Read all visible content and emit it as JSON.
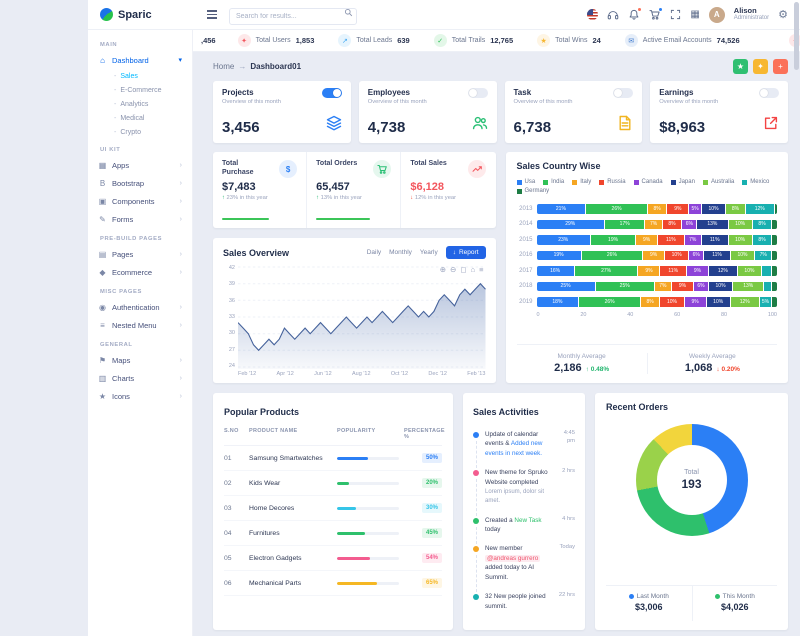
{
  "app": {
    "logo": "Sparic"
  },
  "header": {
    "search_placeholder": "Search for results...",
    "user_name": "Alison",
    "user_role": "Administrator",
    "user_initial": "A",
    "icons": [
      "us-flag-icon",
      "support-headset-icon",
      "notifications-bell-icon",
      "cart-icon",
      "fullscreen-icon",
      "apps-grid-icon",
      "settings-gear-icon"
    ]
  },
  "ticker": {
    "partial": ",456",
    "items": [
      {
        "icon": "users-icon",
        "label": "Total Users",
        "value": "1,853",
        "color": "#f3565d"
      },
      {
        "icon": "leads-icon",
        "label": "Total Leads",
        "value": "639",
        "color": "#45aaf2"
      },
      {
        "icon": "trails-icon",
        "label": "Total Trails",
        "value": "12,765",
        "color": "#2bc155"
      },
      {
        "icon": "wins-icon",
        "label": "Total Wins",
        "value": "24",
        "color": "#f7b731"
      },
      {
        "icon": "email-icon",
        "label": "Active Email Accounts",
        "value": "74,526",
        "color": "#467fcf"
      }
    ]
  },
  "sidebar": {
    "sections": [
      {
        "label": "MAIN",
        "items": [
          {
            "label": "Dashboard",
            "icon": "home-icon",
            "active": true,
            "expanded": true,
            "children": [
              {
                "label": "Sales",
                "active": true
              },
              {
                "label": "E-Commerce"
              },
              {
                "label": "Analytics"
              },
              {
                "label": "Medical"
              },
              {
                "label": "Crypto"
              }
            ]
          }
        ]
      },
      {
        "label": "UI KIT",
        "items": [
          {
            "label": "Apps",
            "icon": "apps-icon"
          },
          {
            "label": "Bootstrap",
            "icon": "bootstrap-icon"
          },
          {
            "label": "Components",
            "icon": "components-icon"
          },
          {
            "label": "Forms",
            "icon": "forms-icon"
          }
        ]
      },
      {
        "label": "PRE-BUILD PAGES",
        "items": [
          {
            "label": "Pages",
            "icon": "pages-icon"
          },
          {
            "label": "Ecommerce",
            "icon": "ecommerce-icon"
          }
        ]
      },
      {
        "label": "MISC PAGES",
        "items": [
          {
            "label": "Authentication",
            "icon": "auth-icon"
          },
          {
            "label": "Nested Menu",
            "icon": "nested-icon"
          }
        ]
      },
      {
        "label": "GENERAL",
        "items": [
          {
            "label": "Maps",
            "icon": "maps-icon"
          },
          {
            "label": "Charts",
            "icon": "charts-icon"
          },
          {
            "label": "Icons",
            "icon": "icons-icon"
          }
        ]
      }
    ]
  },
  "breadcrumb": {
    "home": "Home",
    "current": "Dashboard01",
    "actions": [
      {
        "icon": "star-icon",
        "color": "#2fbf71"
      },
      {
        "icon": "sparkle-icon",
        "color": "#f7b731"
      },
      {
        "icon": "plus-icon",
        "color": "#fb7159"
      }
    ]
  },
  "stat_cards": [
    {
      "title": "Projects",
      "subtitle": "Overview of this month",
      "value": "3,456",
      "toggle_on": true,
      "icon": "layers-icon",
      "color": "#2b7ff5"
    },
    {
      "title": "Employees",
      "subtitle": "Overview of this month",
      "value": "4,738",
      "toggle_on": false,
      "icon": "users-icon",
      "color": "#29bf74"
    },
    {
      "title": "Task",
      "subtitle": "Overview of this month",
      "value": "6,738",
      "toggle_on": false,
      "icon": "file-icon",
      "color": "#f1b521"
    },
    {
      "title": "Earnings",
      "subtitle": "Overview of this month",
      "value": "$8,963",
      "toggle_on": false,
      "icon": "external-link-icon",
      "color": "#f34343"
    }
  ],
  "summary_cards": [
    {
      "title": "Total Purchase",
      "value": "$7,483",
      "trend": "up",
      "trend_text": "23% in this year",
      "icon": "dollar-icon",
      "icon_color": "#2b7ff5",
      "progress": 62
    },
    {
      "title": "Total Orders",
      "value": "65,457",
      "trend": "up",
      "trend_text": "13% in this year",
      "icon": "cart-icon",
      "icon_color": "#29bf74",
      "progress": 72
    },
    {
      "title": "Total Sales",
      "value": "$6,128",
      "trend": "down",
      "trend_text": "12% in this year",
      "icon": "trend-icon",
      "icon_color": "#f3565d",
      "value_color": "#f3565d"
    }
  ],
  "sales_overview": {
    "title": "Sales Overview",
    "tabs": [
      "Daily",
      "Monthly",
      "Yearly"
    ],
    "report_label": "Report",
    "toolbar_icons": [
      "zoom-in-icon",
      "zoom-out-icon",
      "selection-icon",
      "home-icon",
      "menu-icon"
    ]
  },
  "sales_country": {
    "title": "Sales Country Wise",
    "legend": [
      {
        "label": "Usa",
        "color": "#2b7ff5"
      },
      {
        "label": "India",
        "color": "#30c156"
      },
      {
        "label": "Italy",
        "color": "#f5a623"
      },
      {
        "label": "Russia",
        "color": "#f0462d"
      },
      {
        "label": "Canada",
        "color": "#8d43d8"
      },
      {
        "label": "Japan",
        "color": "#23408e"
      },
      {
        "label": "Australia",
        "color": "#7ac943"
      },
      {
        "label": "Mexico",
        "color": "#18b0b0"
      },
      {
        "label": "Germany",
        "color": "#1e7d45"
      }
    ],
    "footer": {
      "monthly_label": "Monthly Average",
      "monthly_value": "2,186",
      "monthly_change": "0.48%",
      "weekly_label": "Weekly Average",
      "weekly_value": "1,068",
      "weekly_change": "0.20%"
    }
  },
  "popular_products": {
    "title": "Popular Products",
    "headers": [
      "S.NO",
      "PRODUCT NAME",
      "POPULARITY",
      "PERCENTAGE %"
    ],
    "rows": [
      {
        "sno": "01",
        "name": "Samsung Smartwatches",
        "pct": 50,
        "color": "#2b7ff5"
      },
      {
        "sno": "02",
        "name": "Kids Wear",
        "pct": 20,
        "color": "#2ec06c"
      },
      {
        "sno": "03",
        "name": "Home Decores",
        "pct": 30,
        "color": "#35c5e8"
      },
      {
        "sno": "04",
        "name": "Furnitures",
        "pct": 45,
        "color": "#2ec06c"
      },
      {
        "sno": "05",
        "name": "Electron Gadgets",
        "pct": 54,
        "color": "#f35c8f"
      },
      {
        "sno": "06",
        "name": "Mechanical Parts",
        "pct": 65,
        "color": "#f5b723"
      }
    ]
  },
  "sales_activities": {
    "title": "Sales Activities",
    "items": [
      {
        "dot": "#2b7ff5",
        "time": "4:45 pm",
        "parts": [
          {
            "t": "Update of calendar events & "
          },
          {
            "t": "Added new events in next week.",
            "c": "#2b7ff5"
          }
        ]
      },
      {
        "dot": "#f35c8f",
        "time": "2 hrs",
        "parts": [
          {
            "t": "New theme for Spruko Website completed"
          }
        ],
        "sub": "Lorem ipsum, dolor sit amet."
      },
      {
        "dot": "#2ec06c",
        "time": "4 hrs",
        "parts": [
          {
            "t": "Created a "
          },
          {
            "t": "New Task",
            "c": "#2ec06c"
          },
          {
            "t": " today"
          }
        ]
      },
      {
        "dot": "#f5a623",
        "time": "Today",
        "parts": [
          {
            "t": "New member "
          },
          {
            "t": "@andreas gurrero",
            "badge": true
          },
          {
            "t": " added today to AI Summit."
          }
        ]
      },
      {
        "dot": "#18b0b0",
        "time": "22 hrs",
        "parts": [
          {
            "t": "32 New people joined summit."
          }
        ]
      }
    ]
  },
  "recent_orders": {
    "title": "Recent Orders",
    "center_label": "Total",
    "center_value": "193",
    "legend": [
      {
        "label": "Last Month",
        "value": "$3,006",
        "color": "#2b7ff5"
      },
      {
        "label": "This Month",
        "value": "$4,026",
        "color": "#2ec06c"
      }
    ]
  },
  "chart_data": [
    {
      "id": "sales_overview",
      "type": "area",
      "title": "Sales Overview",
      "x_labels": [
        "Feb '12",
        "Apr '12",
        "Jun '12",
        "Aug '12",
        "Oct '12",
        "Dec '12",
        "Feb '13"
      ],
      "y_ticks": [
        24,
        27,
        30,
        33,
        36,
        39,
        42
      ],
      "ylim": [
        24,
        42
      ],
      "values": [
        32,
        31,
        30,
        28,
        27,
        28,
        29,
        28,
        29,
        31,
        30,
        29,
        30,
        31,
        30,
        31,
        32,
        31,
        30,
        31,
        32,
        33,
        32,
        31,
        32,
        33,
        32,
        33,
        34,
        33,
        32,
        33,
        34,
        35,
        34,
        33,
        34,
        33,
        34,
        36,
        37,
        36,
        35,
        37,
        38,
        37,
        38,
        39,
        38
      ]
    },
    {
      "id": "sales_country_wise",
      "type": "stacked-bar-horizontal",
      "title": "Sales Country Wise",
      "categories": [
        "2013",
        "2014",
        "2015",
        "2016",
        "2017",
        "2018",
        "2019"
      ],
      "x_ticks": [
        0,
        20,
        40,
        60,
        80,
        100
      ],
      "series_names": [
        "Usa",
        "India",
        "Italy",
        "Russia",
        "Canada",
        "Japan",
        "Australia",
        "Mexico",
        "Germany"
      ],
      "rows": [
        [
          21,
          26,
          8,
          9,
          5,
          10,
          8,
          12,
          1
        ],
        [
          29,
          17,
          7,
          8,
          6,
          13,
          10,
          8,
          2
        ],
        [
          23,
          19,
          9,
          11,
          7,
          11,
          10,
          8,
          2
        ],
        [
          19,
          26,
          9,
          10,
          6,
          11,
          10,
          7,
          2
        ],
        [
          16,
          27,
          9,
          11,
          9,
          12,
          10,
          4,
          2
        ],
        [
          25,
          25,
          7,
          9,
          6,
          10,
          13,
          3,
          2
        ],
        [
          18,
          26,
          8,
          10,
          9,
          10,
          12,
          5,
          2
        ]
      ]
    },
    {
      "id": "recent_orders",
      "type": "donut",
      "title": "Recent Orders",
      "center": {
        "label": "Total",
        "value": 193
      },
      "slices": [
        {
          "value": 45,
          "color": "#2b7ff5"
        },
        {
          "value": 27,
          "color": "#2ec06c"
        },
        {
          "value": 16,
          "color": "#9ad24a"
        },
        {
          "value": 12,
          "color": "#f2d53c"
        }
      ]
    }
  ]
}
